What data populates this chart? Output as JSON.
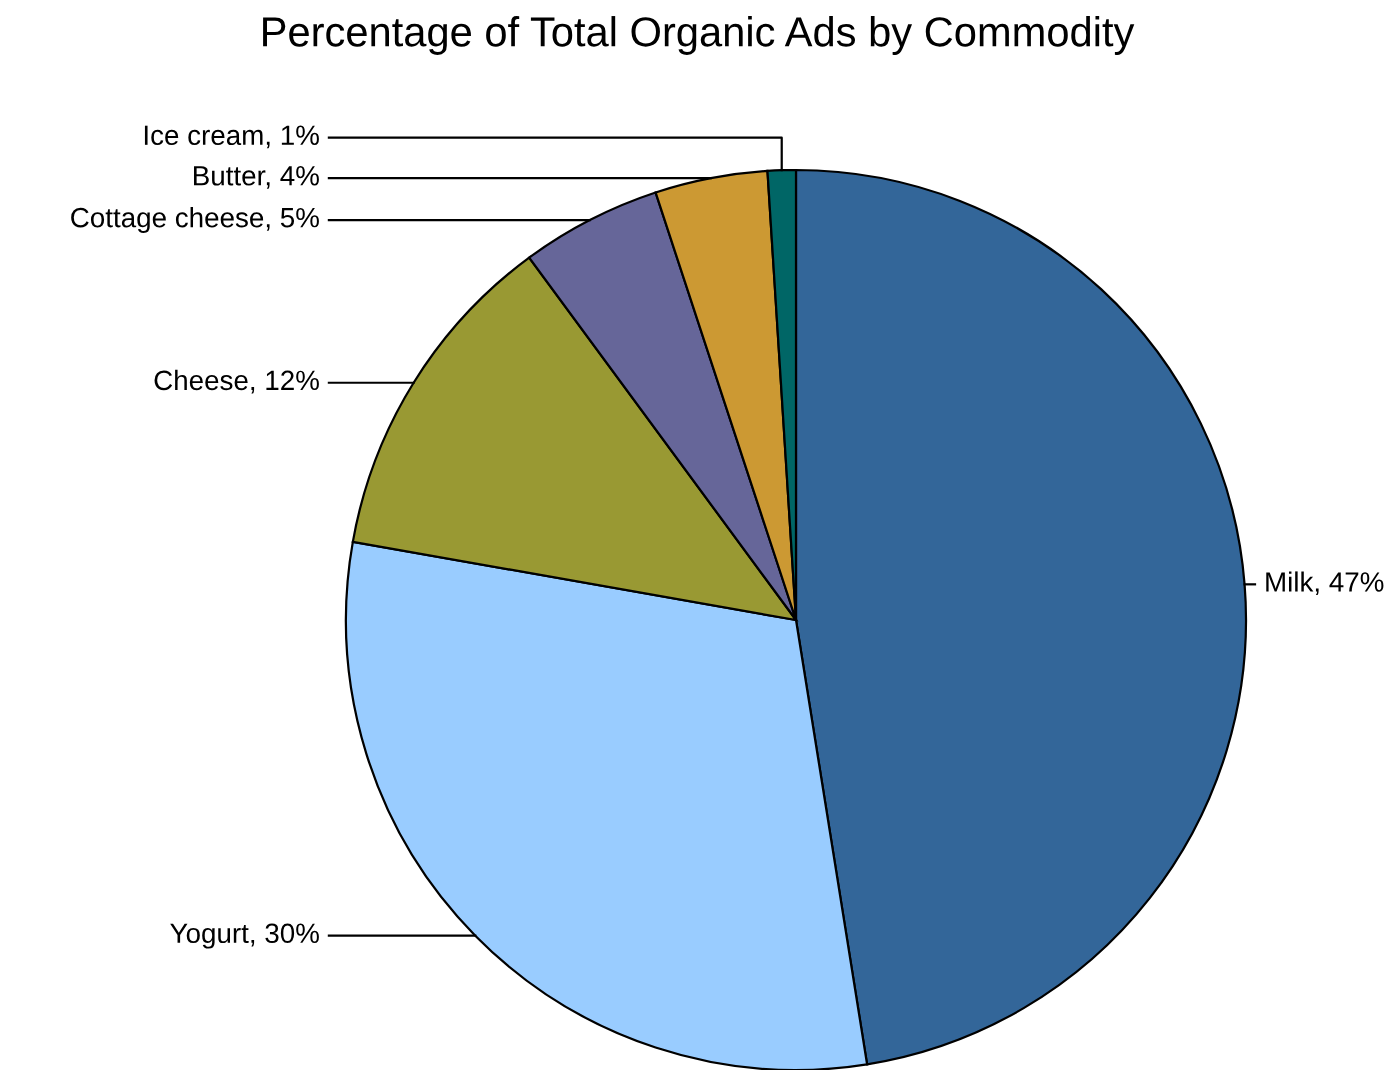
{
  "chart_data": {
    "type": "pie",
    "title": "Percentage of Total Organic Ads by Commodity",
    "categories": [
      "Milk",
      "Yogurt",
      "Cheese",
      "Cottage cheese",
      "Butter",
      "Ice cream"
    ],
    "values": [
      47,
      30,
      12,
      5,
      4,
      1
    ],
    "value_labels": [
      "47%",
      "30%",
      "12%",
      "5%",
      "4%",
      "1%"
    ],
    "colors": [
      "#336699",
      "#99ccff",
      "#999933",
      "#666699",
      "#cc9933",
      "#006666"
    ]
  }
}
